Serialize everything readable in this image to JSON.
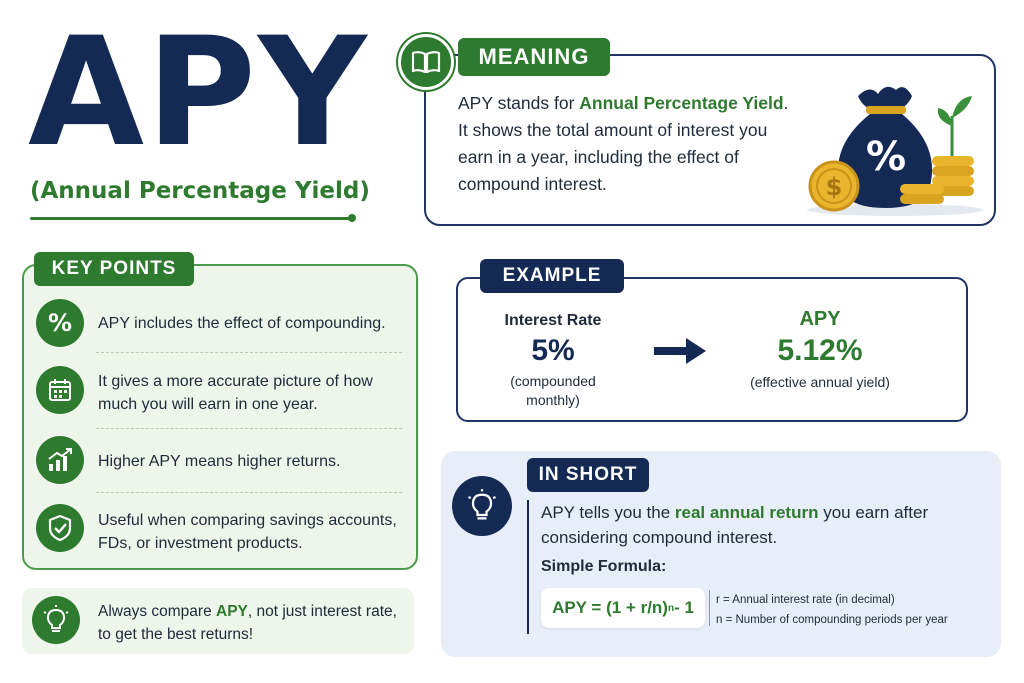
{
  "title": "APY",
  "subtitle": "(Annual Percentage Yield)",
  "meaning": {
    "label": "MEANING",
    "line1_prefix": "APY stands for ",
    "line1_highlight": "Annual Percentage Yield",
    "line1_suffix": ".",
    "body": "It shows the total amount of interest you earn in a year, including the effect of compound interest.",
    "illustration_symbols": {
      "bag": "%",
      "coin": "$"
    }
  },
  "key_points": {
    "label": "KEY POINTS",
    "items": [
      {
        "icon": "percent-icon",
        "glyph": "%",
        "text": "APY includes the effect of compounding."
      },
      {
        "icon": "calendar-icon",
        "text": "It gives a more accurate picture of how much you will earn in one year."
      },
      {
        "icon": "growth-chart-icon",
        "text": "Higher APY means higher returns."
      },
      {
        "icon": "shield-check-icon",
        "text": "Useful when comparing savings accounts, FDs, or investment products."
      }
    ]
  },
  "tip": {
    "icon": "lightbulb-icon",
    "prefix": "Always compare ",
    "highlight": "APY",
    "suffix": ", not just interest rate, to get the best returns!"
  },
  "example": {
    "label": "EXAMPLE",
    "left_title": "Interest Rate",
    "left_value": "5%",
    "left_note_line1": "(compounded",
    "left_note_line2": "monthly)",
    "right_title": "APY",
    "right_value": "5.12%",
    "right_note": "(effective annual yield)"
  },
  "in_short": {
    "label": "IN SHORT",
    "icon": "lightbulb-icon",
    "text_prefix": "APY tells you the ",
    "text_highlight": "real annual return",
    "text_suffix": " you earn after considering compound interest.",
    "formula_title": "Simple Formula:",
    "formula_main": "APY = (1 + r/n)",
    "formula_exp": "n",
    "formula_tail": " - 1",
    "note_r": "r = Annual interest rate (in decimal)",
    "note_n": "n = Number of compounding periods per year"
  },
  "colors": {
    "navy": "#142a55",
    "green": "#2e7a2e",
    "gold": "#e9b52c"
  }
}
